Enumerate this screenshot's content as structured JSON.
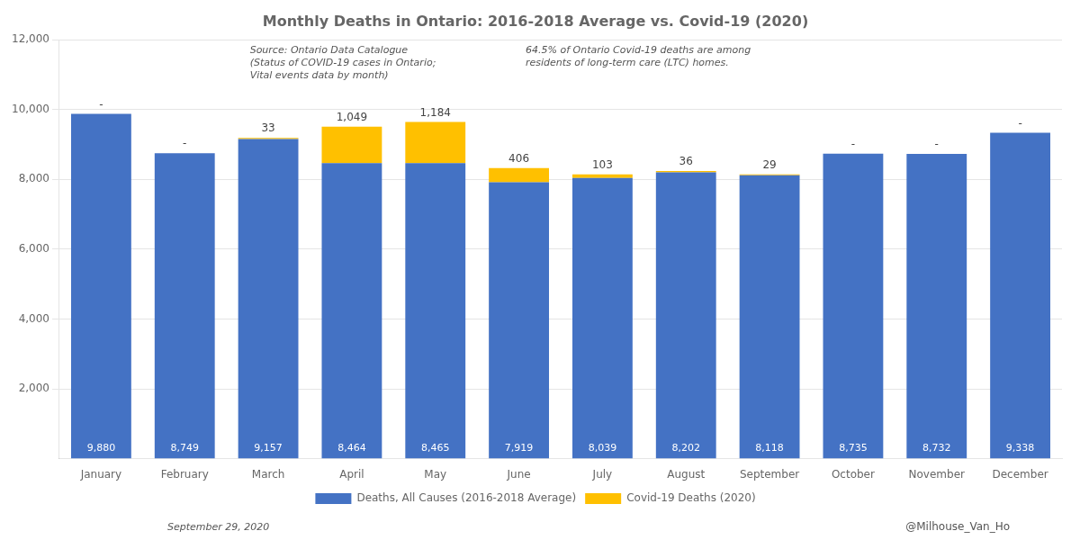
{
  "chart_data": {
    "type": "bar",
    "title": "Monthly Deaths in Ontario: 2016-2018 Average vs. Covid-19 (2020)",
    "categories": [
      "January",
      "February",
      "March",
      "April",
      "May",
      "June",
      "July",
      "August",
      "September",
      "October",
      "November",
      "December"
    ],
    "series": [
      {
        "name": "Deaths, All Causes (2016-2018 Average)",
        "color": "#4472C4",
        "values": [
          9880,
          8749,
          9157,
          8464,
          8465,
          7919,
          8039,
          8202,
          8118,
          8735,
          8732,
          9338
        ],
        "value_labels": [
          "9,880",
          "8,749",
          "9,157",
          "8,464",
          "8,465",
          "7,919",
          "8,039",
          "8,202",
          "8,118",
          "8,735",
          "8,732",
          "9,338"
        ]
      },
      {
        "name": "Covid-19 Deaths (2020)",
        "color": "#FFC000",
        "values": [
          0,
          0,
          33,
          1049,
          1184,
          406,
          103,
          36,
          29,
          0,
          0,
          0
        ],
        "value_labels": [
          "-",
          "-",
          "33",
          "1,049",
          "1,184",
          "406",
          "103",
          "36",
          "29",
          "-",
          "-",
          "-"
        ]
      }
    ],
    "stacked": true,
    "data_labels": true,
    "ylim": [
      0,
      12000
    ],
    "yticks": [
      {
        "value": 2000,
        "label": "2,000"
      },
      {
        "value": 4000,
        "label": "4,000"
      },
      {
        "value": 6000,
        "label": "6,000"
      },
      {
        "value": 8000,
        "label": "8,000"
      },
      {
        "value": 10000,
        "label": "10,000"
      },
      {
        "value": 12000,
        "label": "12,000"
      }
    ],
    "grid": true,
    "legend": "bottom",
    "annotations": [
      "Source: Ontario Data Catalogue\n(Status of COVID-19 cases in Ontario;\nVital events data by month)",
      "64.5% of Ontario Covid-19 deaths are among\nresidents of long-term care (LTC) homes."
    ],
    "footer": [
      "September 29, 2020",
      "@Milhouse_Van_Ho"
    ]
  }
}
